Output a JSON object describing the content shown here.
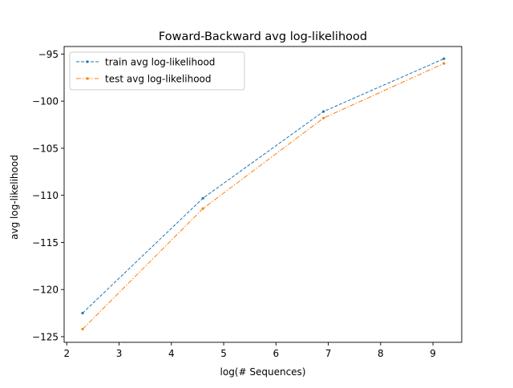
{
  "chart_data": {
    "type": "line",
    "title": "Foward-Backward avg log-likelihood",
    "xlabel": "log(# Sequences)",
    "ylabel": "avg log-likelihood",
    "xlim": [
      1.95,
      9.55
    ],
    "ylim": [
      -125.6,
      -94.2
    ],
    "xticks": [
      2,
      3,
      4,
      5,
      6,
      7,
      8,
      9
    ],
    "yticks": [
      -125,
      -120,
      -115,
      -110,
      -105,
      -100,
      -95
    ],
    "xtick_labels": [
      "2",
      "3",
      "4",
      "5",
      "6",
      "7",
      "8",
      "9"
    ],
    "ytick_labels": [
      "−125",
      "−120",
      "−115",
      "−110",
      "−105",
      "−100",
      "−95"
    ],
    "grid": false,
    "legend_position": "top-left",
    "x": [
      2.303,
      4.605,
      6.908,
      9.21
    ],
    "series": [
      {
        "name": "train avg log-likelihood",
        "values": [
          -122.5,
          -110.3,
          -101.1,
          -95.5
        ],
        "color": "#1f77b4",
        "line_style": "dashed"
      },
      {
        "name": "test avg log-likelihood",
        "values": [
          -124.2,
          -111.4,
          -101.8,
          -96.0
        ],
        "color": "#ff7f0e",
        "line_style": "dashdot"
      }
    ]
  }
}
